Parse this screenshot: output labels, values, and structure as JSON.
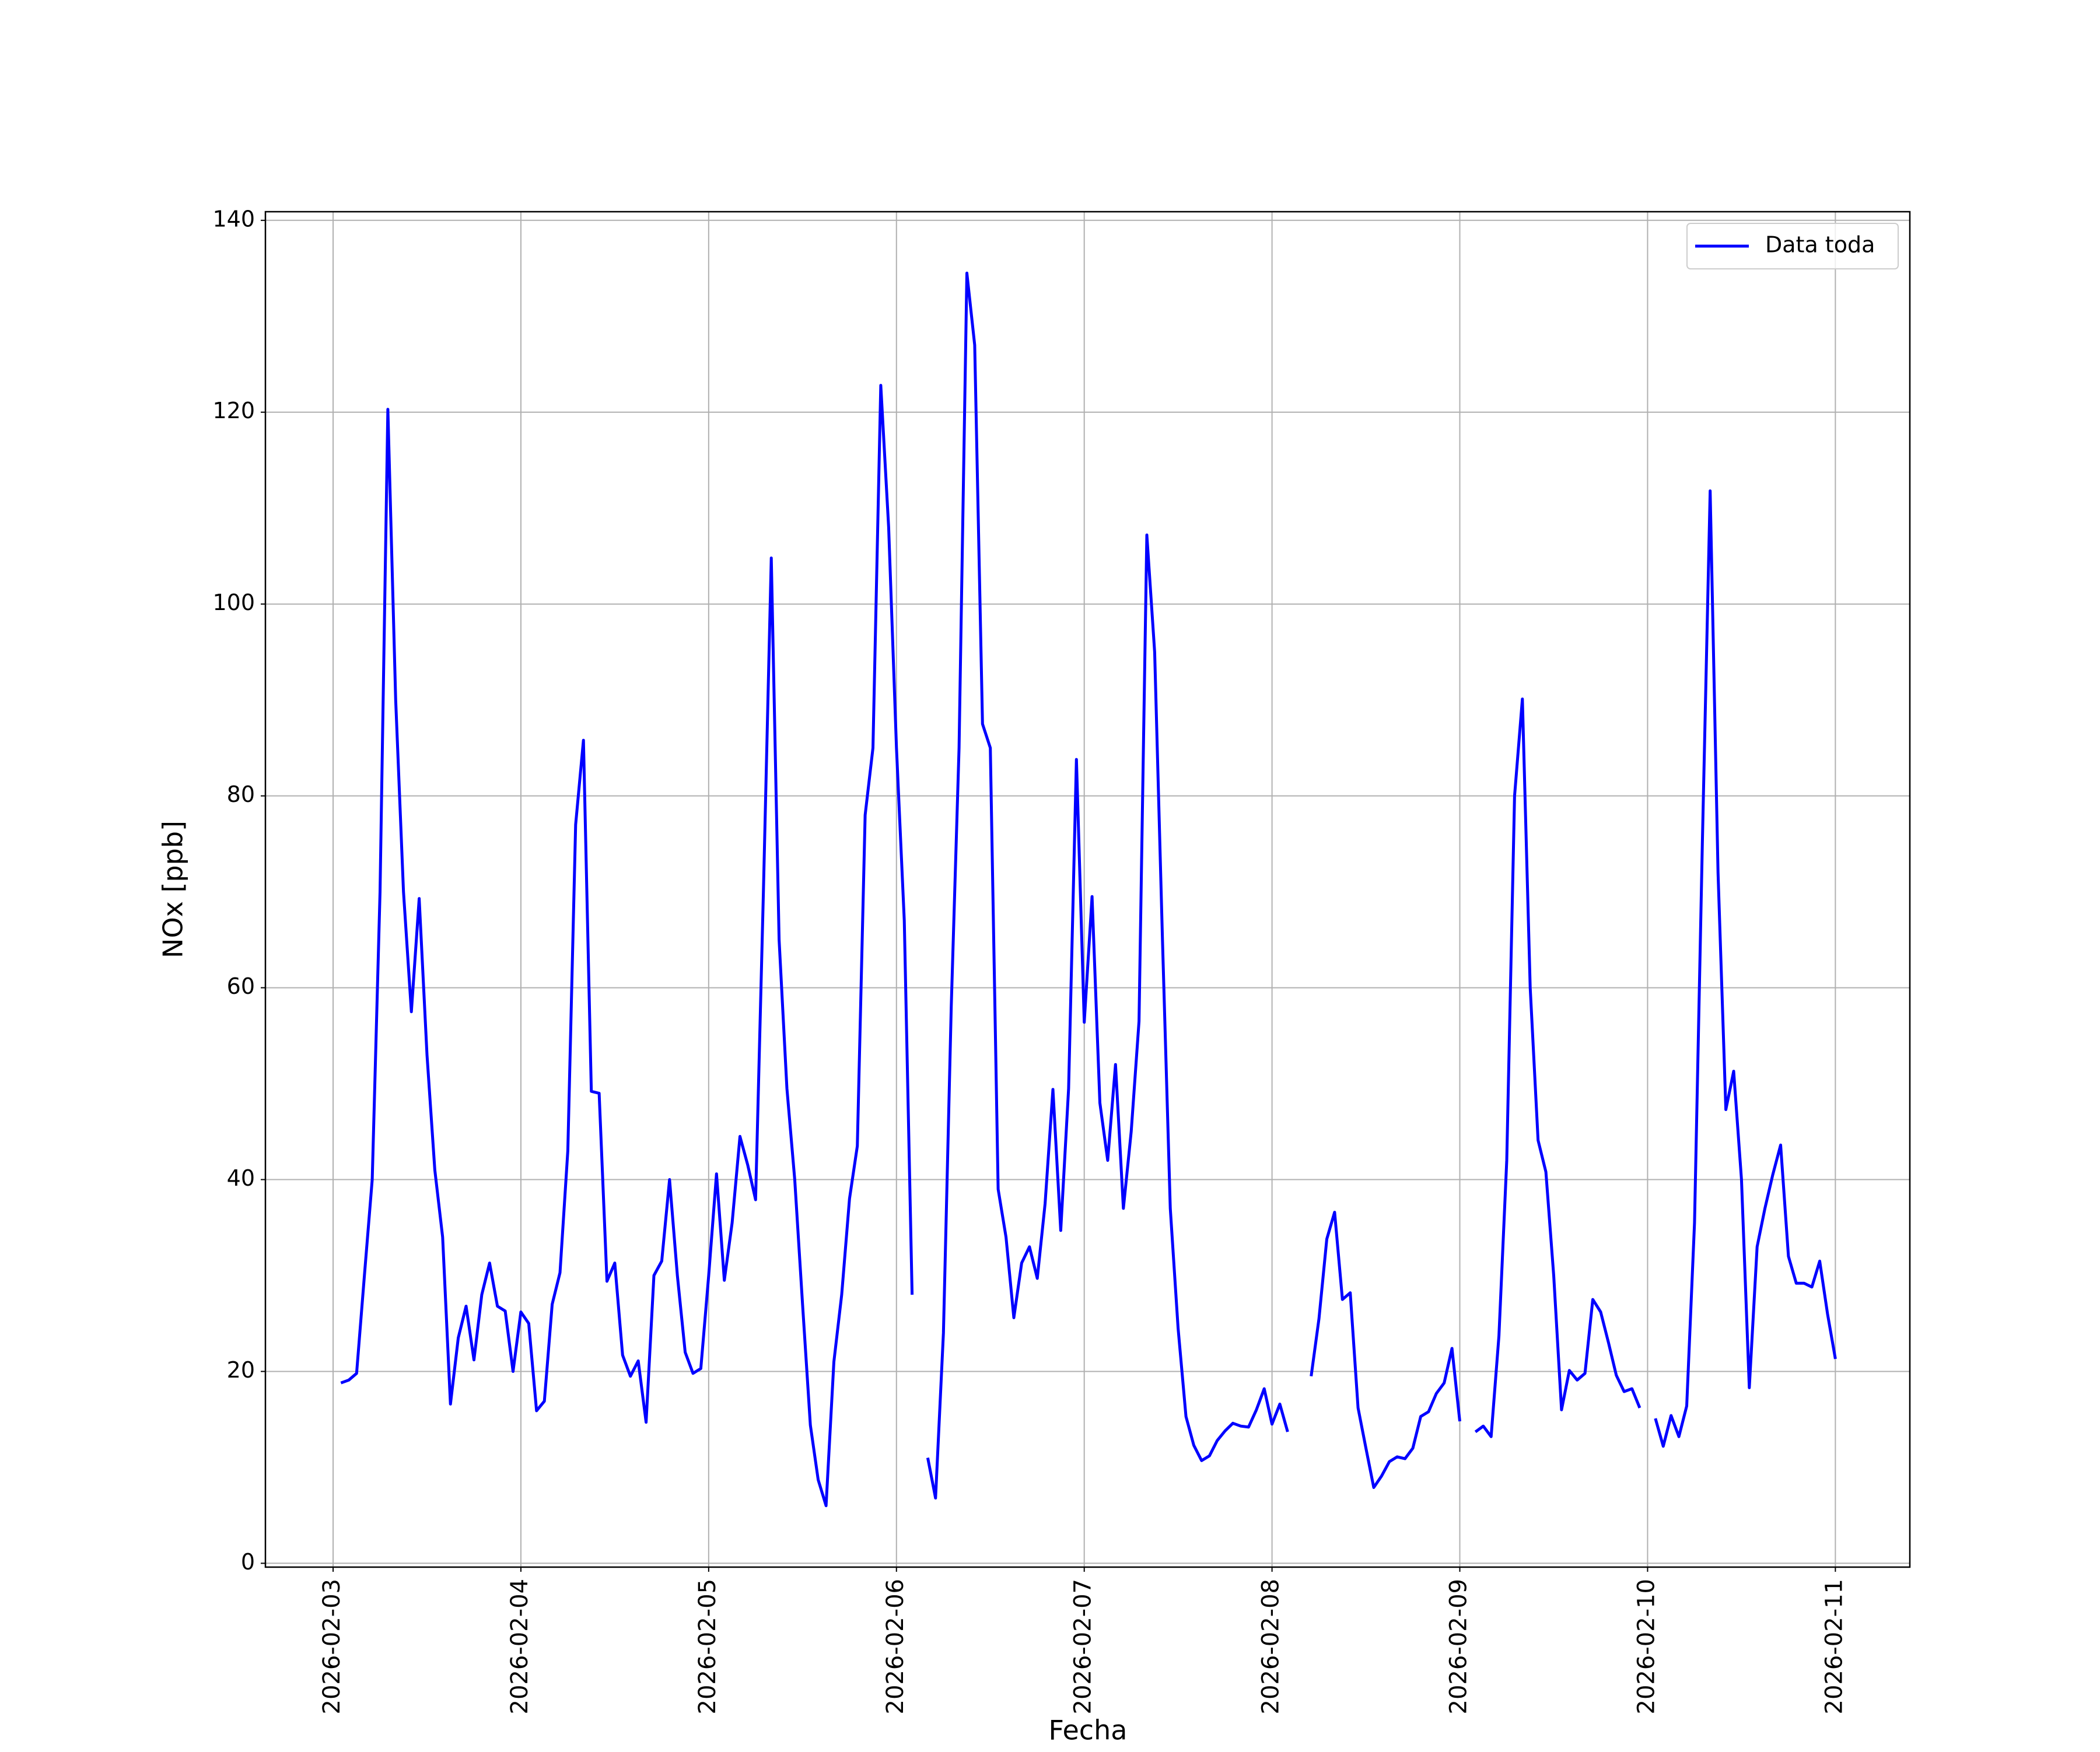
{
  "chart_data": {
    "type": "line",
    "x_label": "Fecha",
    "y_label": "NOx [ppb]",
    "x": [
      "2026-02-03T01:00",
      "2026-02-03T02:00",
      "2026-02-03T03:00",
      "2026-02-03T04:00",
      "2026-02-03T05:00",
      "2026-02-03T06:00",
      "2026-02-03T07:00",
      "2026-02-03T08:00",
      "2026-02-03T09:00",
      "2026-02-03T10:00",
      "2026-02-03T11:00",
      "2026-02-03T12:00",
      "2026-02-03T13:00",
      "2026-02-03T14:00",
      "2026-02-03T15:00",
      "2026-02-03T16:00",
      "2026-02-03T17:00",
      "2026-02-03T18:00",
      "2026-02-03T19:00",
      "2026-02-03T20:00",
      "2026-02-03T21:00",
      "2026-02-03T22:00",
      "2026-02-03T23:00",
      "2026-02-04T00:00",
      "2026-02-04T01:00",
      "2026-02-04T02:00",
      "2026-02-04T03:00",
      "2026-02-04T04:00",
      "2026-02-04T05:00",
      "2026-02-04T06:00",
      "2026-02-04T07:00",
      "2026-02-04T08:00",
      "2026-02-04T09:00",
      "2026-02-04T10:00",
      "2026-02-04T11:00",
      "2026-02-04T12:00",
      "2026-02-04T13:00",
      "2026-02-04T14:00",
      "2026-02-04T15:00",
      "2026-02-04T16:00",
      "2026-02-04T17:00",
      "2026-02-04T18:00",
      "2026-02-04T19:00",
      "2026-02-04T20:00",
      "2026-02-04T21:00",
      "2026-02-04T22:00",
      "2026-02-04T23:00",
      "2026-02-05T00:00",
      "2026-02-05T01:00",
      "2026-02-05T02:00",
      "2026-02-05T03:00",
      "2026-02-05T04:00",
      "2026-02-05T05:00",
      "2026-02-05T06:00",
      "2026-02-05T07:00",
      "2026-02-05T08:00",
      "2026-02-05T09:00",
      "2026-02-05T10:00",
      "2026-02-05T11:00",
      "2026-02-05T12:00",
      "2026-02-05T13:00",
      "2026-02-05T14:00",
      "2026-02-05T15:00",
      "2026-02-05T16:00",
      "2026-02-05T17:00",
      "2026-02-05T18:00",
      "2026-02-05T19:00",
      "2026-02-05T20:00",
      "2026-02-05T21:00",
      "2026-02-05T22:00",
      "2026-02-05T23:00",
      "2026-02-06T00:00",
      "2026-02-06T01:00",
      "2026-02-06T02:00",
      "2026-02-06T03:00",
      "2026-02-06T04:00",
      "2026-02-06T05:00",
      "2026-02-06T06:00",
      "2026-02-06T07:00",
      "2026-02-06T08:00",
      "2026-02-06T09:00",
      "2026-02-06T10:00",
      "2026-02-06T11:00",
      "2026-02-06T12:00",
      "2026-02-06T13:00",
      "2026-02-06T14:00",
      "2026-02-06T15:00",
      "2026-02-06T16:00",
      "2026-02-06T17:00",
      "2026-02-06T18:00",
      "2026-02-06T19:00",
      "2026-02-06T20:00",
      "2026-02-06T21:00",
      "2026-02-06T22:00",
      "2026-02-06T23:00",
      "2026-02-07T00:00",
      "2026-02-07T01:00",
      "2026-02-07T02:00",
      "2026-02-07T03:00",
      "2026-02-07T04:00",
      "2026-02-07T05:00",
      "2026-02-07T06:00",
      "2026-02-07T07:00",
      "2026-02-07T08:00",
      "2026-02-07T09:00",
      "2026-02-07T10:00",
      "2026-02-07T11:00",
      "2026-02-07T12:00",
      "2026-02-07T13:00",
      "2026-02-07T14:00",
      "2026-02-07T15:00",
      "2026-02-07T16:00",
      "2026-02-07T17:00",
      "2026-02-07T18:00",
      "2026-02-07T19:00",
      "2026-02-07T20:00",
      "2026-02-07T21:00",
      "2026-02-07T22:00",
      "2026-02-07T23:00",
      "2026-02-08T00:00",
      "2026-02-08T01:00",
      "2026-02-08T02:00",
      "2026-02-08T03:00",
      "2026-02-08T04:00",
      "2026-02-08T05:00",
      "2026-02-08T06:00",
      "2026-02-08T07:00",
      "2026-02-08T08:00",
      "2026-02-08T09:00",
      "2026-02-08T10:00",
      "2026-02-08T11:00",
      "2026-02-08T12:00",
      "2026-02-08T13:00",
      "2026-02-08T14:00",
      "2026-02-08T15:00",
      "2026-02-08T16:00",
      "2026-02-08T17:00",
      "2026-02-08T18:00",
      "2026-02-08T19:00",
      "2026-02-08T20:00",
      "2026-02-08T21:00",
      "2026-02-08T22:00",
      "2026-02-08T23:00",
      "2026-02-09T00:00",
      "2026-02-09T01:00",
      "2026-02-09T02:00",
      "2026-02-09T03:00",
      "2026-02-09T04:00",
      "2026-02-09T05:00",
      "2026-02-09T06:00",
      "2026-02-09T07:00",
      "2026-02-09T08:00",
      "2026-02-09T09:00",
      "2026-02-09T10:00",
      "2026-02-09T11:00",
      "2026-02-09T12:00",
      "2026-02-09T13:00",
      "2026-02-09T14:00",
      "2026-02-09T15:00",
      "2026-02-09T16:00",
      "2026-02-09T17:00",
      "2026-02-09T18:00",
      "2026-02-09T19:00",
      "2026-02-09T20:00",
      "2026-02-09T21:00",
      "2026-02-09T22:00",
      "2026-02-09T23:00",
      "2026-02-10T00:00",
      "2026-02-10T01:00",
      "2026-02-10T02:00",
      "2026-02-10T03:00",
      "2026-02-10T04:00",
      "2026-02-10T05:00",
      "2026-02-10T06:00",
      "2026-02-10T07:00",
      "2026-02-10T08:00",
      "2026-02-10T09:00",
      "2026-02-10T10:00",
      "2026-02-10T11:00",
      "2026-02-10T12:00",
      "2026-02-10T13:00",
      "2026-02-10T14:00",
      "2026-02-10T15:00",
      "2026-02-10T16:00",
      "2026-02-10T17:00",
      "2026-02-10T18:00",
      "2026-02-10T19:00",
      "2026-02-10T20:00",
      "2026-02-10T21:00",
      "2026-02-10T22:00",
      "2026-02-10T23:00",
      "2026-02-11T00:00"
    ],
    "series": [
      {
        "name": "Data toda",
        "color": "#0000ff",
        "values": [
          18.8,
          19.1,
          19.8,
          30,
          40,
          70,
          120.3,
          90,
          70,
          57.5,
          69.3,
          53,
          41,
          34,
          16.6,
          23.5,
          26.8,
          21.2,
          28,
          31.3,
          26.8,
          26.3,
          20,
          26.2,
          25,
          15.9,
          16.9,
          27,
          30.3,
          43,
          77,
          85.8,
          49.2,
          49,
          29.4,
          31.3,
          21.7,
          19.5,
          21.1,
          14.7,
          30,
          31.5,
          40,
          30,
          22,
          19.8,
          20.3,
          30,
          40.6,
          29.5,
          35.5,
          44.5,
          41.5,
          37.9,
          70,
          104.8,
          65,
          49.5,
          40,
          27,
          14.4,
          8.7,
          6,
          21,
          28,
          38,
          43.5,
          78,
          85,
          122.8,
          108,
          85,
          67,
          28,
          null,
          11,
          6.8,
          24,
          58,
          85,
          134.5,
          127,
          87.5,
          85,
          39,
          34,
          25.6,
          31.3,
          33,
          29.7,
          37.5,
          49.4,
          34.7,
          49.5,
          83.8,
          56.4,
          69.5,
          48,
          42,
          52,
          37,
          45,
          56.5,
          107.2,
          95,
          65,
          37,
          24.5,
          15.3,
          12.3,
          10.7,
          11.2,
          12.8,
          13.8,
          14.6,
          14.3,
          14.2,
          16,
          18.2,
          14.5,
          16.6,
          13.7,
          null,
          null,
          19.5,
          25.5,
          33.8,
          36.6,
          27.5,
          28.2,
          16.2,
          12,
          7.9,
          9.1,
          10.6,
          11.1,
          10.9,
          12,
          15.3,
          15.8,
          17.7,
          18.8,
          22.4,
          14.8,
          null,
          13.7,
          14.3,
          13.2,
          23.7,
          42,
          80,
          90.1,
          60,
          44.1,
          40.8,
          30,
          16,
          20.1,
          19.1,
          19.8,
          27.5,
          26.2,
          23,
          19.6,
          17.9,
          18.2,
          16.2,
          null,
          15.1,
          12.2,
          15.4,
          13.2,
          16.4,
          35.5,
          75,
          111.8,
          72,
          47.3,
          51.3,
          40,
          18.3,
          33,
          37,
          40.5,
          43.6,
          32,
          29.2,
          29.2,
          28.8,
          31.5,
          26,
          21.3
        ]
      }
    ],
    "xlim": [
      "2026-02-02T15:21",
      "2026-02-11T09:31"
    ],
    "ylim": [
      -0.4,
      140.9
    ],
    "xticks": [
      "2026-02-03",
      "2026-02-04",
      "2026-02-05",
      "2026-02-06",
      "2026-02-07",
      "2026-02-08",
      "2026-02-09",
      "2026-02-10",
      "2026-02-11"
    ],
    "yticks": [
      0,
      20,
      40,
      60,
      80,
      100,
      120,
      140
    ],
    "grid": true,
    "legend": "upper right"
  }
}
